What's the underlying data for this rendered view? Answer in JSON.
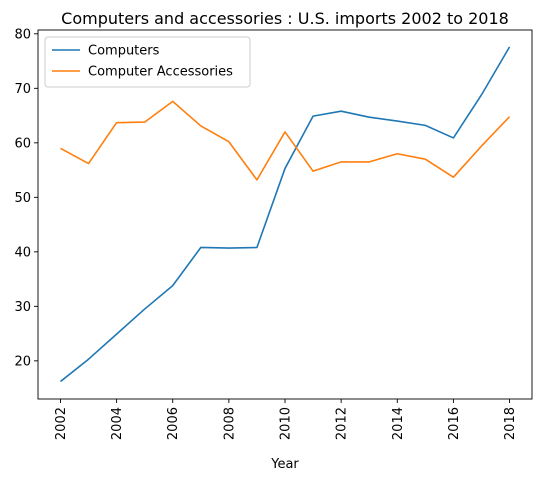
{
  "chart_data": {
    "type": "line",
    "title": "Computers and accessories : U.S. imports 2002 to 2018",
    "xlabel": "Year",
    "ylabel": "",
    "x": [
      2002,
      2003,
      2004,
      2005,
      2006,
      2007,
      2008,
      2009,
      2010,
      2011,
      2012,
      2013,
      2014,
      2015,
      2016,
      2017,
      2018
    ],
    "xticks": [
      2002,
      2004,
      2006,
      2008,
      2010,
      2012,
      2014,
      2016,
      2018
    ],
    "yticks": [
      20,
      30,
      40,
      50,
      60,
      70,
      80
    ],
    "xlim": [
      2001.2,
      2018.8
    ],
    "ylim": [
      13.0,
      80.7
    ],
    "grid": false,
    "legend": "top-left",
    "series": [
      {
        "name": "Computers",
        "color": "#1f77b4",
        "values": [
          16.2,
          20.3,
          24.9,
          29.5,
          33.8,
          40.8,
          40.7,
          40.8,
          55.3,
          64.9,
          65.8,
          64.7,
          64.0,
          63.2,
          60.9,
          68.8,
          77.6
        ]
      },
      {
        "name": "Computer Accessories",
        "color": "#ff7f0e",
        "values": [
          59.0,
          56.2,
          63.7,
          63.8,
          67.6,
          63.1,
          60.2,
          53.2,
          62.0,
          54.8,
          56.5,
          56.5,
          58.0,
          57.0,
          53.7,
          59.4,
          64.8
        ]
      }
    ]
  }
}
